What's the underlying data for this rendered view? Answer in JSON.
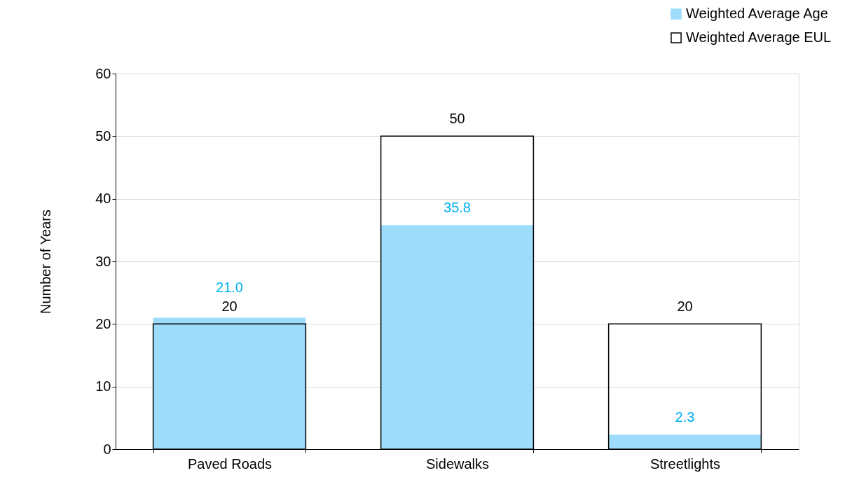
{
  "chart_data": {
    "type": "bar",
    "ylabel": "Number of Years",
    "categories": [
      "Paved Roads",
      "Sidewalks",
      "Streetlights"
    ],
    "series": [
      {
        "name": "Weighted Average Age",
        "color": "#9ddcfb",
        "values": [
          21.0,
          35.8,
          2.3
        ],
        "value_labels": [
          "21.0",
          "35.8",
          "2.3"
        ]
      },
      {
        "name": "Weighted Average EUL",
        "color": "#000000",
        "values": [
          20,
          50,
          20
        ],
        "value_labels": [
          "20",
          "50",
          "20"
        ]
      }
    ],
    "ylim": [
      0,
      60
    ],
    "yticks": [
      0,
      10,
      20,
      30,
      40,
      50,
      60
    ],
    "grid": "y",
    "legend": "top right"
  }
}
